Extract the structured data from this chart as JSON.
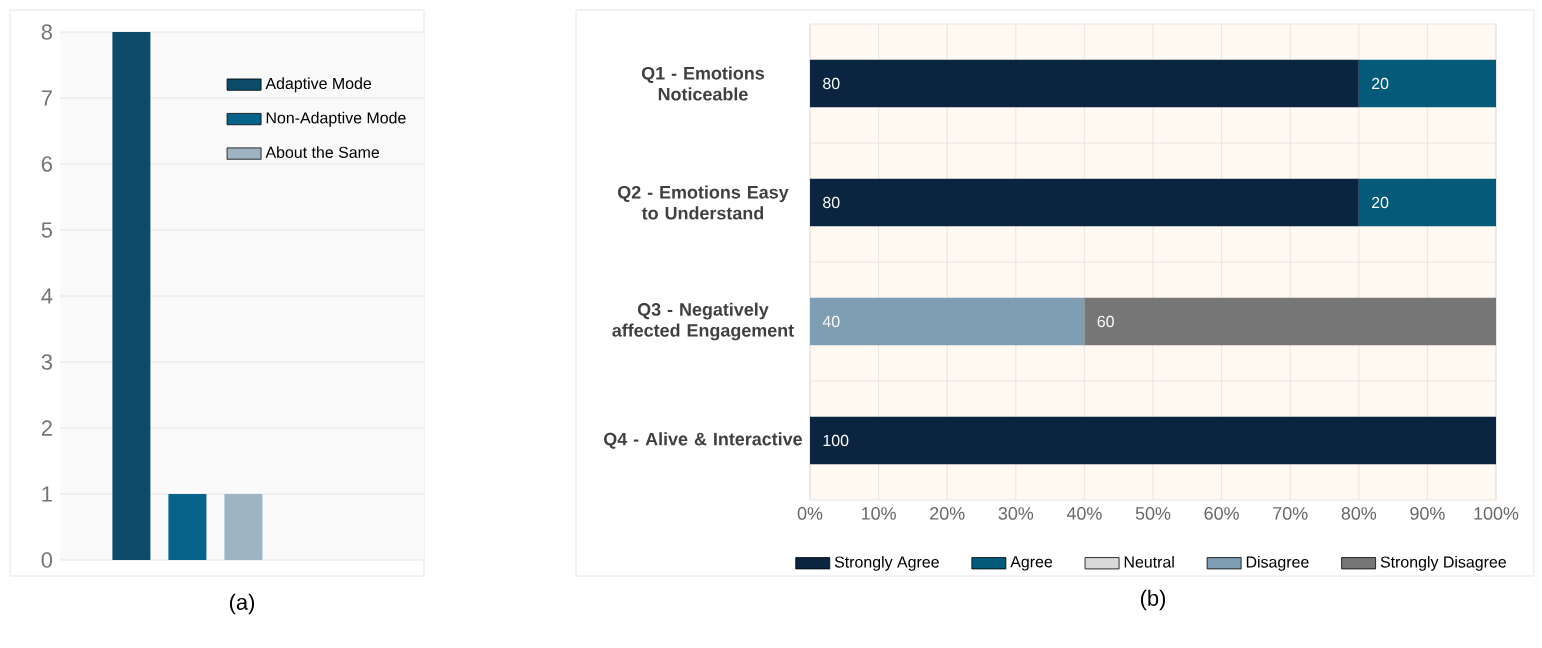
{
  "chart_data": [
    {
      "type": "bar",
      "categories": [
        null
      ],
      "series": [
        {
          "name": "Adaptive Mode",
          "color": "#0d4b6a",
          "values": [
            8
          ]
        },
        {
          "name": "Non-Adaptive Mode",
          "color": "#08638a",
          "values": [
            1
          ]
        },
        {
          "name": "About the Same",
          "color": "#9fb4c3",
          "values": [
            1
          ]
        }
      ],
      "ylim": [
        0,
        8
      ],
      "yticks": [
        0,
        1,
        2,
        3,
        4,
        5,
        6,
        7,
        8
      ],
      "grid": "y",
      "legend": "top right",
      "annotations": [
        "(a)"
      ]
    },
    {
      "type": "bar",
      "orientation": "horizontal",
      "stacked": true,
      "categories": [
        "Q1 - Emotions Noticeable",
        "Q2 - Emotions Easy to Understand",
        "Q3 - Negatively affected Engagement",
        "Q4 - Alive & Interactive"
      ],
      "series": [
        {
          "name": "Strongly Agree",
          "color": "#0b2540",
          "values": [
            80,
            80,
            null,
            100
          ]
        },
        {
          "name": "Agree",
          "color": "#055a7a",
          "values": [
            20,
            20,
            null,
            null
          ]
        },
        {
          "name": "Neutral",
          "color": "#d9d9d9",
          "values": [
            null,
            null,
            null,
            null
          ]
        },
        {
          "name": "Disagree",
          "color": "#7f9db3",
          "values": [
            null,
            null,
            40,
            null
          ]
        },
        {
          "name": "Strongly Disagree",
          "color": "#767676",
          "values": [
            null,
            null,
            60,
            null
          ]
        }
      ],
      "xlim": [
        0,
        100
      ],
      "xticks": [
        {
          "value": 0,
          "label": "0%"
        },
        {
          "value": 10,
          "label": "10%"
        },
        {
          "value": 20,
          "label": "20%"
        },
        {
          "value": 30,
          "label": "30%"
        },
        {
          "value": 40,
          "label": "40%"
        },
        {
          "value": 50,
          "label": "50%"
        },
        {
          "value": 60,
          "label": "60%"
        },
        {
          "value": 70,
          "label": "70%"
        },
        {
          "value": 80,
          "label": "80%"
        },
        {
          "value": 90,
          "label": "90%"
        },
        {
          "value": 100,
          "label": "100%"
        }
      ],
      "grid": true,
      "legend": "bottom",
      "data_labels": true,
      "annotations": [
        "(b)"
      ]
    }
  ]
}
